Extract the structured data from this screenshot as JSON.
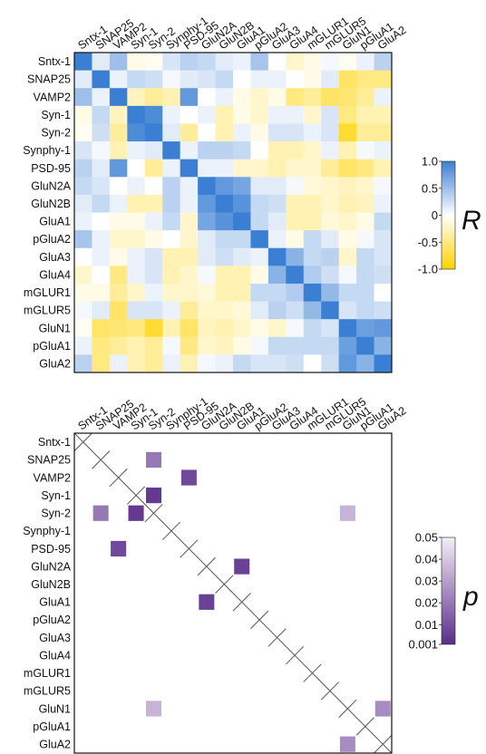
{
  "chart_data": [
    {
      "type": "heatmap",
      "labels": [
        "Sntx-1",
        "SNAP25",
        "VAMP2",
        "Syn-1",
        "Syn-2",
        "Synphy-1",
        "PSD-95",
        "GluN2A",
        "GluN2B",
        "GluA1",
        "pGluA2",
        "GluA3",
        "GluA4",
        "mGLUR1",
        "mGLUR5",
        "GluN1",
        "pGluA1",
        "GluA2"
      ],
      "colorbar": {
        "symbol": "R",
        "range": [
          -1.0,
          1.0
        ],
        "ticks": [
          "1.0",
          "0.5",
          "0",
          "-0.5",
          "-1.0"
        ],
        "tick_values": [
          1.0,
          0.5,
          0,
          -0.5,
          -1.0
        ],
        "colors": {
          "positive": "#3b7fd4",
          "zero": "#ffffff",
          "negative": "#ffd200"
        }
      },
      "matrix": [
        [
          1.0,
          0.15,
          0.5,
          -0.1,
          -0.05,
          0.2,
          0.35,
          0.3,
          0.15,
          0.1,
          0.45,
          0.0,
          -0.2,
          -0.1,
          0.05,
          -0.05,
          0.1,
          0.35
        ],
        [
          0.15,
          1.0,
          0.1,
          0.3,
          0.25,
          0.05,
          0.15,
          0.2,
          0.3,
          0.0,
          0.1,
          0.1,
          0.0,
          -0.1,
          0.15,
          -0.6,
          -0.5,
          -0.5
        ],
        [
          0.5,
          0.1,
          1.0,
          -0.25,
          -0.4,
          -0.3,
          0.8,
          0.0,
          0.1,
          -0.1,
          -0.2,
          -0.1,
          -0.5,
          -0.4,
          -0.6,
          -0.55,
          -0.4,
          0.1
        ],
        [
          -0.1,
          0.3,
          -0.25,
          1.0,
          0.9,
          0.1,
          0.0,
          0.1,
          -0.3,
          -0.1,
          -0.2,
          0.1,
          0.1,
          -0.2,
          0.2,
          -0.5,
          -0.3,
          -0.3
        ],
        [
          -0.05,
          0.25,
          -0.4,
          0.9,
          1.0,
          0.15,
          -0.4,
          0.0,
          -0.3,
          0.1,
          -0.1,
          0.2,
          0.2,
          0.1,
          0.2,
          -0.8,
          -0.4,
          -0.4
        ],
        [
          0.2,
          0.05,
          -0.3,
          0.1,
          0.15,
          1.0,
          0.1,
          0.35,
          0.35,
          0.3,
          0.0,
          -0.3,
          -0.3,
          -0.2,
          0.1,
          -0.3,
          0.05,
          0.1
        ],
        [
          0.35,
          0.15,
          0.8,
          0.0,
          -0.4,
          0.1,
          1.0,
          0.1,
          0.1,
          -0.2,
          -0.2,
          -0.3,
          -0.2,
          -0.2,
          -0.4,
          -0.6,
          -0.5,
          -0.3
        ],
        [
          0.3,
          0.2,
          0.0,
          0.1,
          0.0,
          0.35,
          0.1,
          1.0,
          0.8,
          0.7,
          0.15,
          0.15,
          0.05,
          -0.15,
          -0.2,
          -0.25,
          -0.2,
          0.05
        ],
        [
          0.15,
          0.3,
          0.1,
          -0.3,
          -0.3,
          0.35,
          0.1,
          0.8,
          1.0,
          0.85,
          0.3,
          0.25,
          -0.3,
          -0.3,
          -0.2,
          -0.3,
          -0.25,
          0.1
        ],
        [
          0.1,
          0.0,
          -0.1,
          -0.1,
          0.1,
          0.3,
          -0.2,
          0.7,
          0.85,
          1.0,
          0.3,
          0.15,
          -0.3,
          -0.3,
          -0.15,
          -0.2,
          -0.1,
          0.3
        ],
        [
          0.45,
          0.1,
          -0.2,
          -0.2,
          -0.1,
          0.0,
          -0.2,
          0.15,
          0.3,
          0.3,
          1.0,
          0.1,
          -0.1,
          0.3,
          0.15,
          -0.1,
          0.05,
          0.2
        ],
        [
          0.0,
          0.1,
          -0.1,
          0.1,
          0.2,
          -0.3,
          -0.3,
          0.15,
          0.25,
          0.15,
          0.1,
          1.0,
          0.6,
          0.3,
          0.35,
          -0.2,
          0.3,
          0.2
        ],
        [
          -0.2,
          0.0,
          -0.5,
          0.1,
          0.2,
          -0.3,
          -0.2,
          0.05,
          -0.3,
          -0.3,
          -0.1,
          0.6,
          1.0,
          0.4,
          0.25,
          0.05,
          0.3,
          0.25
        ],
        [
          -0.1,
          -0.1,
          -0.4,
          -0.2,
          0.1,
          -0.2,
          -0.2,
          -0.15,
          -0.3,
          -0.3,
          0.3,
          0.3,
          0.4,
          1.0,
          0.55,
          0.3,
          0.3,
          0.0
        ],
        [
          0.05,
          0.15,
          -0.6,
          0.2,
          0.2,
          0.1,
          -0.4,
          -0.2,
          -0.2,
          -0.15,
          0.15,
          0.35,
          0.25,
          0.55,
          1.0,
          0.2,
          0.3,
          0.25
        ],
        [
          -0.05,
          -0.6,
          -0.55,
          -0.5,
          -0.8,
          -0.3,
          -0.6,
          -0.25,
          -0.3,
          -0.2,
          -0.1,
          -0.2,
          0.05,
          0.3,
          0.2,
          1.0,
          0.75,
          0.8
        ],
        [
          0.1,
          -0.5,
          -0.4,
          -0.3,
          -0.4,
          0.05,
          -0.5,
          -0.2,
          -0.25,
          -0.1,
          0.05,
          0.3,
          0.3,
          0.3,
          0.3,
          0.75,
          1.0,
          0.6
        ],
        [
          0.35,
          -0.5,
          0.1,
          -0.3,
          -0.4,
          0.1,
          -0.3,
          0.05,
          0.1,
          0.3,
          0.2,
          0.2,
          0.25,
          0.0,
          0.25,
          0.8,
          0.6,
          1.0
        ]
      ]
    },
    {
      "type": "heatmap",
      "labels": [
        "Sntx-1",
        "SNAP25",
        "VAMP2",
        "Syn-1",
        "Syn-2",
        "Synphy-1",
        "PSD-95",
        "GluN2A",
        "GluN2B",
        "GluA1",
        "pGluA2",
        "GluA3",
        "GluA4",
        "mGLUR1",
        "mGLUR5",
        "GluN1",
        "pGluA1",
        "GluA2"
      ],
      "colorbar": {
        "symbol": "p",
        "range": [
          0.001,
          0.05
        ],
        "ticks": [
          "0.05",
          "0.04",
          "0.03",
          "0.02",
          "0.01",
          "0.001"
        ],
        "tick_values": [
          0.05,
          0.04,
          0.03,
          0.02,
          0.01,
          0.001
        ],
        "colors": {
          "low": "#5a2d8a",
          "high": "#f5eef8"
        }
      },
      "diagonal_marker": "cross",
      "significant_cells": [
        {
          "row": "SNAP25",
          "col": "Syn-2",
          "p": 0.02
        },
        {
          "row": "VAMP2",
          "col": "PSD-95",
          "p": 0.008
        },
        {
          "row": "Syn-1",
          "col": "Syn-2",
          "p": 0.004
        },
        {
          "row": "Syn-2",
          "col": "SNAP25",
          "p": 0.02
        },
        {
          "row": "Syn-2",
          "col": "Syn-1",
          "p": 0.004
        },
        {
          "row": "Syn-2",
          "col": "GluN1",
          "p": 0.035
        },
        {
          "row": "PSD-95",
          "col": "VAMP2",
          "p": 0.008
        },
        {
          "row": "GluN2A",
          "col": "GluA1",
          "p": 0.006
        },
        {
          "row": "GluA1",
          "col": "GluN2A",
          "p": 0.006
        },
        {
          "row": "GluN1",
          "col": "Syn-2",
          "p": 0.035
        },
        {
          "row": "GluN1",
          "col": "GluA2",
          "p": 0.025
        },
        {
          "row": "GluA2",
          "col": "GluN1",
          "p": 0.025
        }
      ]
    }
  ]
}
